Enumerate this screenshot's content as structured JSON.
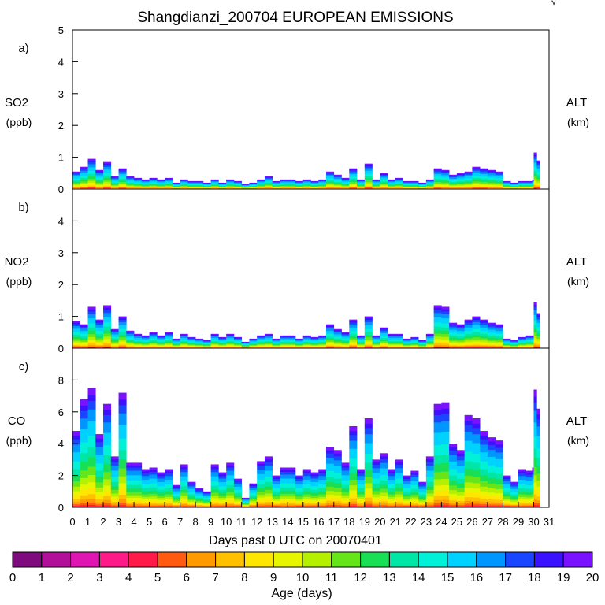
{
  "title": "Shangdianzi_200704 EUROPEAN EMISSIONS",
  "corner_mark": "√",
  "chart_data": [
    {
      "type": "area",
      "id": "a",
      "panel_label": "a)",
      "species": "SO2",
      "units": "(ppb)",
      "right_label": "ALT",
      "right_units": "(km)",
      "ylim": [
        0,
        5
      ],
      "yticks": [
        0,
        1,
        2,
        3,
        4,
        5
      ],
      "x": [
        0,
        0.5,
        1,
        1.5,
        2,
        2.5,
        3,
        3.5,
        4,
        4.5,
        5,
        5.5,
        6,
        6.5,
        7,
        7.5,
        8,
        8.5,
        9,
        9.5,
        10,
        10.5,
        11,
        11.5,
        12,
        12.5,
        13,
        13.5,
        14,
        14.5,
        15,
        15.5,
        16,
        16.5,
        17,
        17.5,
        18,
        18.5,
        19,
        19.5,
        20,
        20.5,
        21,
        21.5,
        22,
        22.5,
        23,
        23.5,
        24,
        24.5,
        25,
        25.5,
        26,
        26.5,
        27,
        27.5,
        28,
        28.5,
        29,
        29.5,
        29.9,
        30,
        30.2
      ],
      "values": [
        0.55,
        0.7,
        0.95,
        0.6,
        0.85,
        0.4,
        0.65,
        0.4,
        0.35,
        0.3,
        0.35,
        0.3,
        0.35,
        0.2,
        0.3,
        0.25,
        0.25,
        0.2,
        0.3,
        0.2,
        0.3,
        0.25,
        0.15,
        0.2,
        0.3,
        0.4,
        0.25,
        0.3,
        0.3,
        0.25,
        0.3,
        0.25,
        0.3,
        0.55,
        0.45,
        0.35,
        0.65,
        0.3,
        0.8,
        0.3,
        0.5,
        0.3,
        0.35,
        0.25,
        0.25,
        0.2,
        0.3,
        0.65,
        0.6,
        0.45,
        0.5,
        0.55,
        0.7,
        0.65,
        0.6,
        0.55,
        0.25,
        0.2,
        0.25,
        0.25,
        0.3,
        1.15,
        0.9
      ]
    },
    {
      "type": "area",
      "id": "b",
      "panel_label": "b)",
      "species": "NO2",
      "units": "(ppb)",
      "right_label": "ALT",
      "right_units": "(km)",
      "ylim": [
        0,
        5
      ],
      "yticks": [
        0,
        1,
        2,
        3,
        4
      ],
      "x": [
        0,
        0.5,
        1,
        1.5,
        2,
        2.5,
        3,
        3.5,
        4,
        4.5,
        5,
        5.5,
        6,
        6.5,
        7,
        7.5,
        8,
        8.5,
        9,
        9.5,
        10,
        10.5,
        11,
        11.5,
        12,
        12.5,
        13,
        13.5,
        14,
        14.5,
        15,
        15.5,
        16,
        16.5,
        17,
        17.5,
        18,
        18.5,
        19,
        19.5,
        20,
        20.5,
        21,
        21.5,
        22,
        22.5,
        23,
        23.5,
        24,
        24.5,
        25,
        25.5,
        26,
        26.5,
        27,
        27.5,
        28,
        28.5,
        29,
        29.5,
        29.9,
        30,
        30.2
      ],
      "values": [
        0.85,
        0.75,
        1.3,
        0.9,
        1.35,
        0.6,
        1.0,
        0.55,
        0.45,
        0.4,
        0.5,
        0.4,
        0.5,
        0.3,
        0.45,
        0.35,
        0.3,
        0.25,
        0.45,
        0.35,
        0.45,
        0.35,
        0.2,
        0.3,
        0.4,
        0.45,
        0.3,
        0.4,
        0.4,
        0.3,
        0.4,
        0.35,
        0.4,
        0.75,
        0.6,
        0.5,
        0.9,
        0.4,
        1.0,
        0.4,
        0.65,
        0.45,
        0.45,
        0.3,
        0.35,
        0.25,
        0.45,
        1.35,
        1.3,
        0.8,
        0.75,
        0.9,
        1.0,
        0.9,
        0.8,
        0.75,
        0.3,
        0.25,
        0.35,
        0.4,
        0.4,
        1.45,
        1.1
      ]
    },
    {
      "type": "area",
      "id": "c",
      "panel_label": "c)",
      "species": "CO",
      "units": "(ppb)",
      "right_label": "ALT",
      "right_units": "(km)",
      "ylim": [
        0,
        10
      ],
      "yticks": [
        0,
        2,
        4,
        6,
        8
      ],
      "x": [
        0,
        0.5,
        1,
        1.5,
        2,
        2.5,
        3,
        3.5,
        4,
        4.5,
        5,
        5.5,
        6,
        6.5,
        7,
        7.5,
        8,
        8.5,
        9,
        9.5,
        10,
        10.5,
        11,
        11.5,
        12,
        12.5,
        13,
        13.5,
        14,
        14.5,
        15,
        15.5,
        16,
        16.5,
        17,
        17.5,
        18,
        18.5,
        19,
        19.5,
        20,
        20.5,
        21,
        21.5,
        22,
        22.5,
        23,
        23.5,
        24,
        24.5,
        25,
        25.5,
        26,
        26.5,
        27,
        27.5,
        28,
        28.5,
        29,
        29.5,
        29.9,
        30,
        30.2
      ],
      "values": [
        4.8,
        6.8,
        7.5,
        4.6,
        6.5,
        3.2,
        7.2,
        2.8,
        2.8,
        2.4,
        2.5,
        2.2,
        2.4,
        1.4,
        2.7,
        1.6,
        1.2,
        1.0,
        2.7,
        2.2,
        2.8,
        1.8,
        0.6,
        1.5,
        2.9,
        3.2,
        2.0,
        2.5,
        2.5,
        2.0,
        2.4,
        2.2,
        2.4,
        3.8,
        3.6,
        2.8,
        5.1,
        2.4,
        5.6,
        3.0,
        3.4,
        2.4,
        3.0,
        2.0,
        2.3,
        1.6,
        3.2,
        6.5,
        6.6,
        4.0,
        3.6,
        5.8,
        5.6,
        4.8,
        4.4,
        4.2,
        2.0,
        1.6,
        2.4,
        2.3,
        2.5,
        7.4,
        6.2
      ]
    }
  ],
  "x_axis": {
    "label": "Days past 0 UTC on 20070401",
    "ticks": [
      "0",
      "1",
      "2",
      "3",
      "4",
      "5",
      "6",
      "7",
      "8",
      "9",
      "10",
      "11",
      "12",
      "13",
      "14",
      "15",
      "16",
      "17",
      "18",
      "19",
      "20",
      "21",
      "22",
      "23",
      "24",
      "25",
      "26",
      "27",
      "28",
      "29",
      "30",
      "31"
    ]
  },
  "colorbar": {
    "label": "Age (days)",
    "ticks": [
      "0",
      "1",
      "2",
      "3",
      "4",
      "5",
      "6",
      "7",
      "8",
      "9",
      "10",
      "11",
      "12",
      "13",
      "14",
      "15",
      "16",
      "17",
      "18",
      "19",
      "20"
    ],
    "colors": [
      "#7f0a7d",
      "#b2109a",
      "#df16b2",
      "#ff1a8a",
      "#ff1a4a",
      "#ff5a10",
      "#ff9a00",
      "#ffc000",
      "#ffe600",
      "#e8f500",
      "#b4f000",
      "#66e61a",
      "#19df55",
      "#00e6a6",
      "#00f0d8",
      "#00d2ff",
      "#0096ff",
      "#1b46ff",
      "#3a12ff",
      "#7a12ff"
    ]
  }
}
